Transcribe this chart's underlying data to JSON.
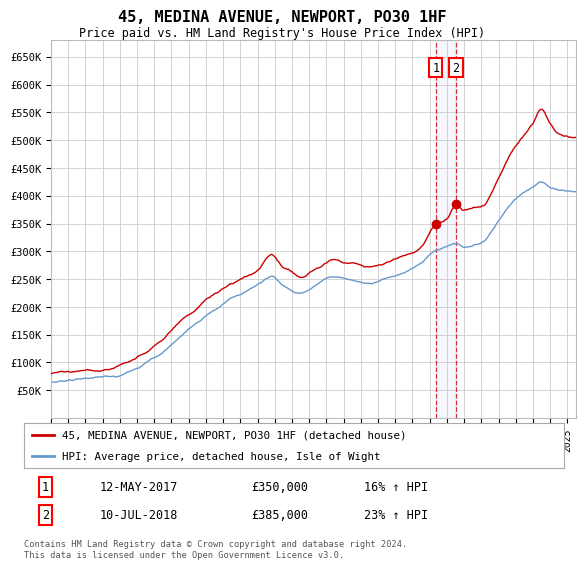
{
  "title": "45, MEDINA AVENUE, NEWPORT, PO30 1HF",
  "subtitle": "Price paid vs. HM Land Registry's House Price Index (HPI)",
  "ylim": [
    0,
    680000
  ],
  "yticks": [
    50000,
    100000,
    150000,
    200000,
    250000,
    300000,
    350000,
    400000,
    450000,
    500000,
    550000,
    600000,
    650000
  ],
  "xlim_start": 1995.0,
  "xlim_end": 2025.5,
  "sale1_x": 2017.36,
  "sale1_y": 350000,
  "sale1_label": "1",
  "sale1_date": "12-MAY-2017",
  "sale1_price": "£350,000",
  "sale1_hpi": "16% ↑ HPI",
  "sale2_x": 2018.53,
  "sale2_y": 385000,
  "sale2_label": "2",
  "sale2_date": "10-JUL-2018",
  "sale2_price": "£385,000",
  "sale2_hpi": "23% ↑ HPI",
  "line1_color": "#cc0000",
  "line2_color": "#6699cc",
  "legend1_label": "45, MEDINA AVENUE, NEWPORT, PO30 1HF (detached house)",
  "legend2_label": "HPI: Average price, detached house, Isle of Wight",
  "footer": "Contains HM Land Registry data © Crown copyright and database right 2024.\nThis data is licensed under the Open Government Licence v3.0.",
  "background_color": "#ffffff",
  "grid_color": "#cccccc"
}
